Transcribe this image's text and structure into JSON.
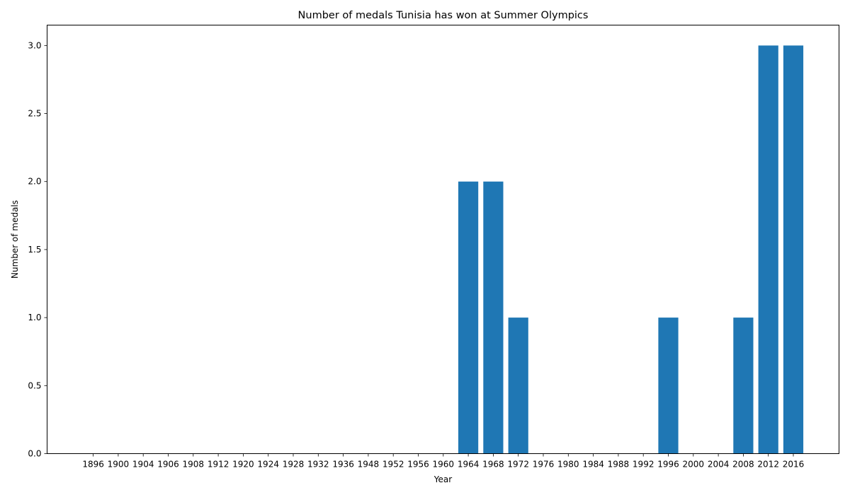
{
  "chart_data": {
    "type": "bar",
    "title": "Number of medals Tunisia has won at Summer Olympics",
    "xlabel": "Year",
    "ylabel": "Number of medals",
    "categories": [
      "1896",
      "1900",
      "1904",
      "1906",
      "1908",
      "1912",
      "1920",
      "1924",
      "1928",
      "1932",
      "1936",
      "1948",
      "1952",
      "1956",
      "1960",
      "1964",
      "1968",
      "1972",
      "1976",
      "1980",
      "1984",
      "1988",
      "1992",
      "1996",
      "2000",
      "2004",
      "2008",
      "2012",
      "2016"
    ],
    "values": [
      0,
      0,
      0,
      0,
      0,
      0,
      0,
      0,
      0,
      0,
      0,
      0,
      0,
      0,
      0,
      2,
      2,
      1,
      0,
      0,
      0,
      0,
      0,
      1,
      0,
      0,
      1,
      3,
      3
    ],
    "ylim": [
      0,
      3.15
    ],
    "yticks": [
      "0.0",
      "0.5",
      "1.0",
      "1.5",
      "2.0",
      "2.5",
      "3.0"
    ],
    "bar_color": "#1f77b4",
    "grid": false
  }
}
